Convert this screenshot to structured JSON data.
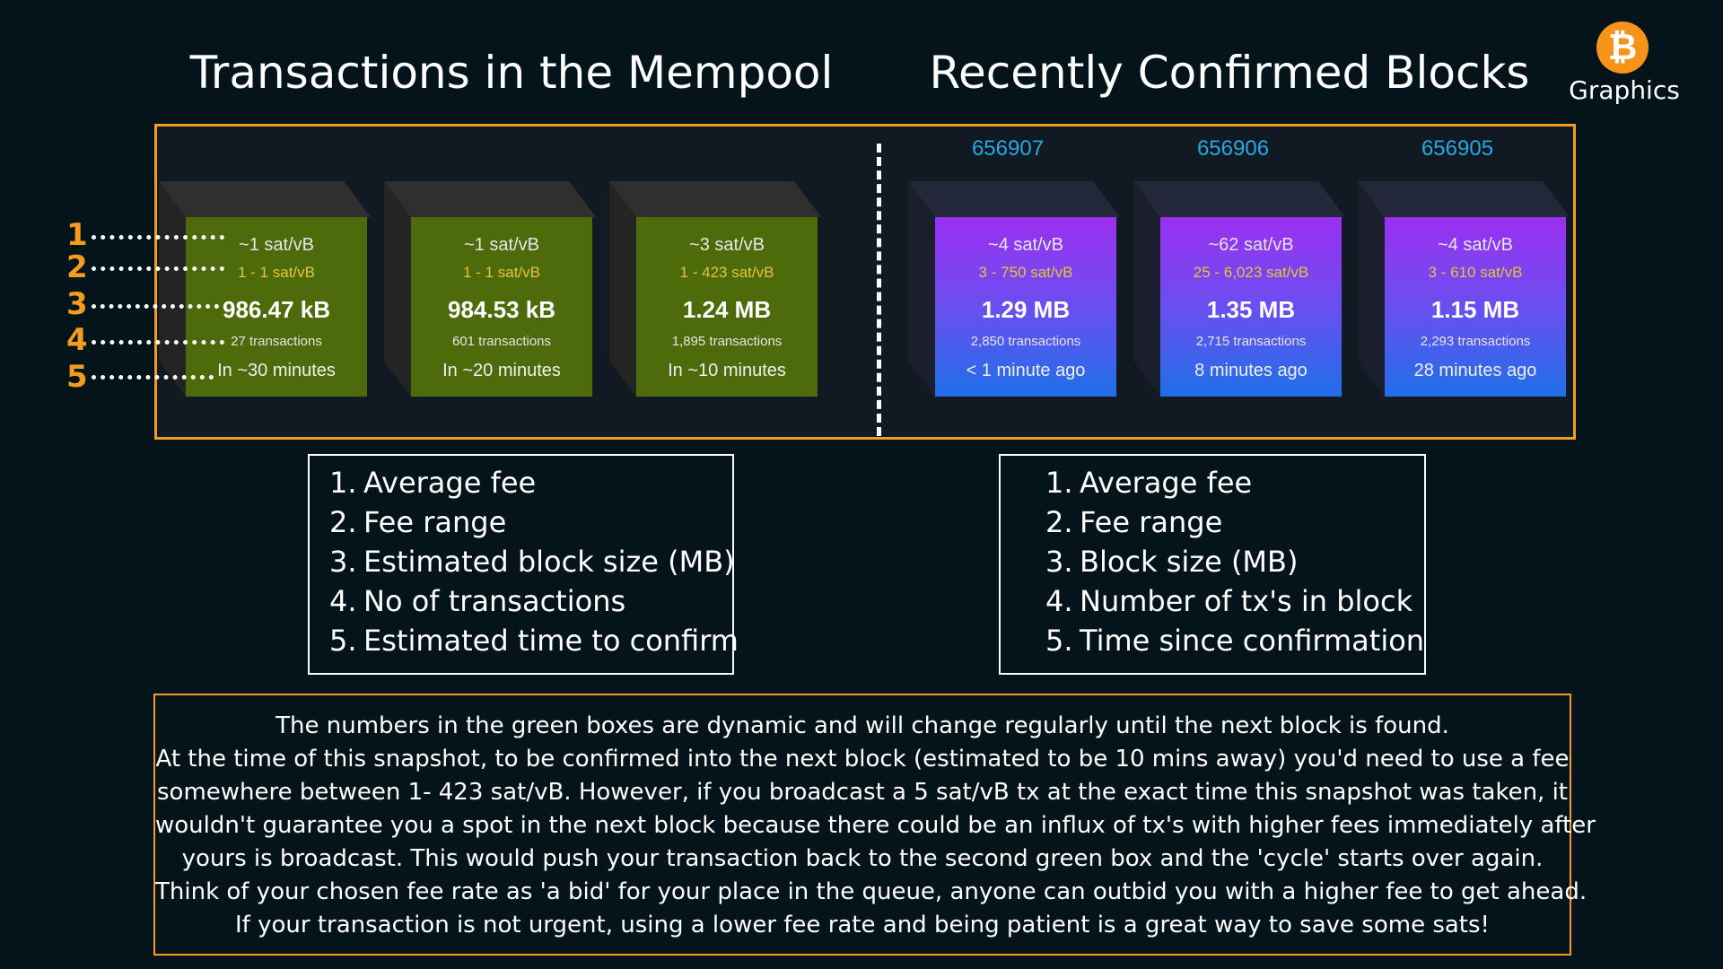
{
  "headings": {
    "mempool": "Transactions in the Mempool",
    "confirmed": "Recently Confirmed Blocks"
  },
  "logo": {
    "icon": "bitcoin-icon",
    "symbol": "₿",
    "text": "Graphics"
  },
  "markers": [
    "1",
    "2",
    "3",
    "4",
    "5"
  ],
  "mempool_blocks": [
    {
      "avg_fee": "~1 sat/vB",
      "fee_range": "1 - 1 sat/vB",
      "size": "986.47 kB",
      "tx_count": "27 transactions",
      "time": "In ~30 minutes"
    },
    {
      "avg_fee": "~1 sat/vB",
      "fee_range": "1 - 1 sat/vB",
      "size": "984.53 kB",
      "tx_count": "601 transactions",
      "time": "In ~20 minutes"
    },
    {
      "avg_fee": "~3 sat/vB",
      "fee_range": "1 - 423 sat/vB",
      "size": "1.24 MB",
      "tx_count": "1,895 transactions",
      "time": "In ~10 minutes"
    }
  ],
  "confirmed_blocks": [
    {
      "height": "656907",
      "avg_fee": "~4 sat/vB",
      "fee_range": "3 - 750 sat/vB",
      "size": "1.29 MB",
      "tx_count": "2,850 transactions",
      "time": "< 1 minute ago"
    },
    {
      "height": "656906",
      "avg_fee": "~62 sat/vB",
      "fee_range": "25 - 6,023 sat/vB",
      "size": "1.35 MB",
      "tx_count": "2,715 transactions",
      "time": "8 minutes ago"
    },
    {
      "height": "656905",
      "avg_fee": "~4 sat/vB",
      "fee_range": "3 - 610 sat/vB",
      "size": "1.15 MB",
      "tx_count": "2,293 transactions",
      "time": "28 minutes ago"
    }
  ],
  "legend_mempool": [
    {
      "num": "1.",
      "text": "Average fee"
    },
    {
      "num": "2.",
      "text": "Fee range"
    },
    {
      "num": "3.",
      "text": "Estimated block size (MB)"
    },
    {
      "num": "4.",
      "text": "No of transactions"
    },
    {
      "num": "5.",
      "text": "Estimated time to confirm"
    }
  ],
  "legend_confirmed": [
    {
      "num": "1.",
      "text": "Average fee"
    },
    {
      "num": "2.",
      "text": "Fee range"
    },
    {
      "num": "3.",
      "text": "Block size (MB)"
    },
    {
      "num": "4.",
      "text": "Number of tx's in block"
    },
    {
      "num": "5.",
      "text": "Time since confirmation"
    }
  ],
  "explanation": [
    "The numbers in the green boxes are dynamic and will change regularly until the next block is found.",
    "At the time of this snapshot, to be confirmed into the next block (estimated to be 10 mins away) you'd need to use a fee",
    "somewhere between 1- 423 sat/vB. However, if you broadcast a 5 sat/vB tx at the exact time this snapshot was taken, it",
    "wouldn't guarantee you a spot in the next block because there could be an influx of tx's with higher fees immediately after",
    "yours is broadcast. This would push your transaction back to the second green box and the 'cycle' starts over again.",
    "Think of your chosen fee rate as 'a bid' for your place in the queue, anyone can outbid you with a higher fee to get ahead.",
    "If your transaction is not urgent, using a lower fee rate and being patient is a great way to save some sats!"
  ],
  "colors": {
    "background": "#04141a",
    "accent_orange": "#f39c1f",
    "mempool_green": "#4d6b0b",
    "confirmed_purple": "#9b2ff0",
    "confirmed_blue": "#1f6fe8",
    "block_height_blue": "#25a9e0",
    "fee_range_yellow": "#e7c53a"
  }
}
